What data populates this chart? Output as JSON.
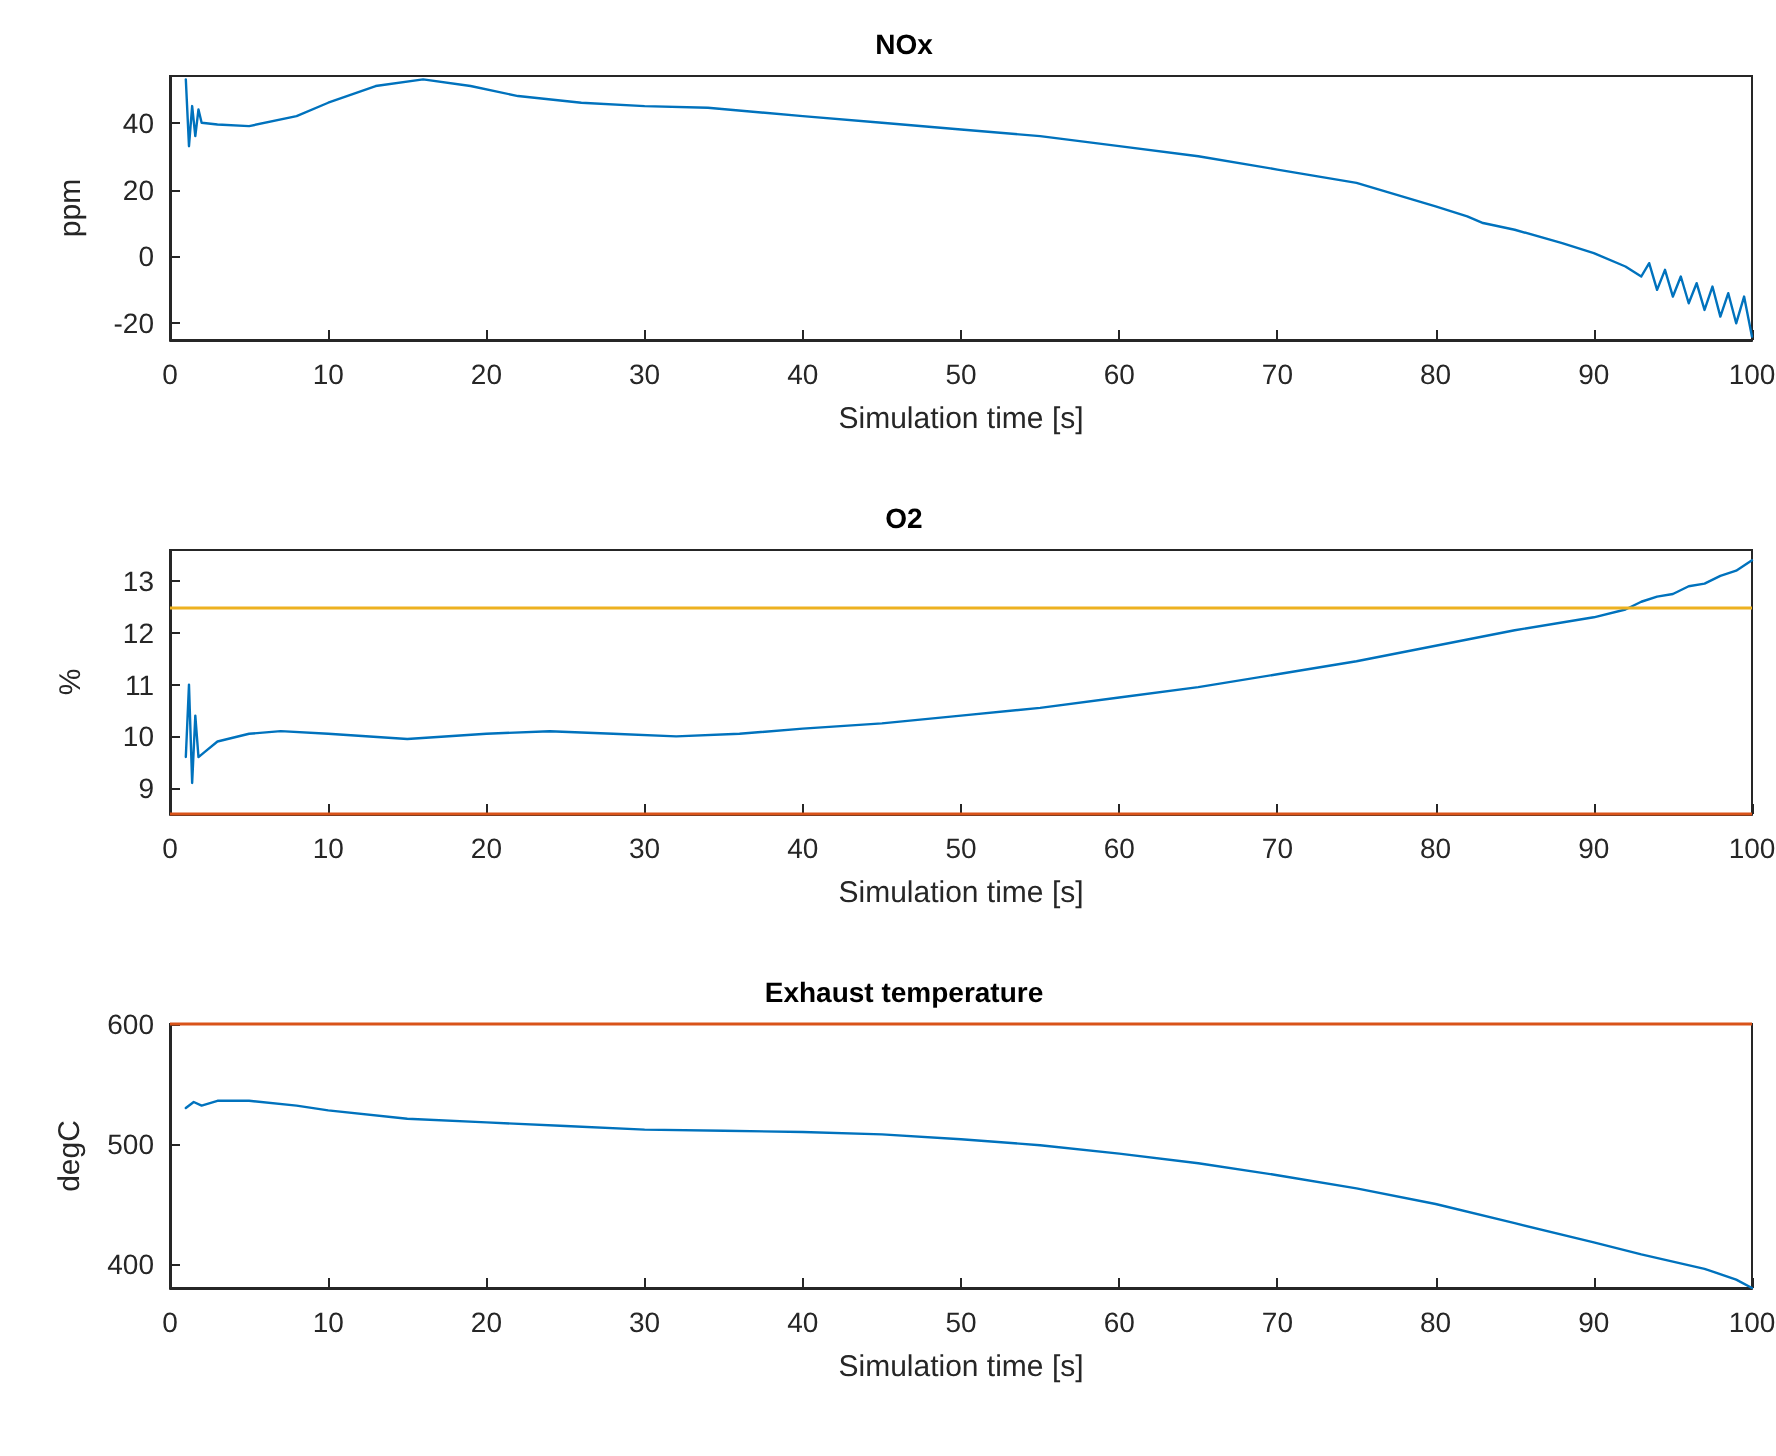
{
  "chart_data": [
    {
      "type": "line",
      "title": "NOx",
      "xlabel": "Simulation time [s]",
      "ylabel": "ppm",
      "xlim": [
        0,
        100
      ],
      "xticks": [
        0,
        10,
        20,
        30,
        40,
        50,
        60,
        70,
        80,
        90,
        100
      ],
      "ylim": [
        -25,
        54
      ],
      "yticks": [
        -20,
        0,
        20,
        40
      ],
      "marker": "none",
      "line_style": "solid",
      "series": [
        {
          "color": "#0072bd",
          "x": [
            1,
            1.2,
            1.4,
            1.6,
            1.8,
            2,
            3,
            5,
            8,
            10,
            13,
            16,
            19,
            22,
            26,
            30,
            34,
            40,
            45,
            50,
            55,
            60,
            65,
            70,
            75,
            80,
            82,
            83,
            85,
            88,
            90,
            92,
            93,
            93.5,
            94,
            94.5,
            95,
            95.5,
            96,
            96.5,
            97,
            97.5,
            98,
            98.5,
            99,
            99.5,
            100
          ],
          "values": [
            53,
            33,
            45,
            36,
            44,
            40,
            39.5,
            39,
            42,
            46,
            51,
            53,
            51,
            48,
            46,
            45,
            44.5,
            42,
            40,
            38,
            36,
            33,
            30,
            26,
            22,
            15,
            12,
            10,
            8,
            4,
            1,
            -3,
            -6,
            -2,
            -10,
            -4,
            -12,
            -6,
            -14,
            -8,
            -16,
            -9,
            -18,
            -11,
            -20,
            -12,
            -24
          ]
        }
      ]
    },
    {
      "type": "line",
      "title": "O2",
      "xlabel": "Simulation time [s]",
      "ylabel": "%",
      "xlim": [
        0,
        100
      ],
      "xticks": [
        0,
        10,
        20,
        30,
        40,
        50,
        60,
        70,
        80,
        90,
        100
      ],
      "ylim": [
        8.5,
        13.6
      ],
      "yticks": [
        9,
        10,
        11,
        12,
        13
      ],
      "marker": "none",
      "line_style": "solid",
      "series": [
        {
          "color": "#0072bd",
          "x": [
            1,
            1.2,
            1.4,
            1.6,
            1.8,
            2.2,
            3,
            5,
            7,
            10,
            15,
            20,
            24,
            28,
            32,
            36,
            40,
            45,
            50,
            55,
            60,
            65,
            70,
            75,
            80,
            85,
            90,
            92,
            93,
            94,
            95,
            96,
            97,
            98,
            99,
            100
          ],
          "values": [
            9.6,
            11,
            9.1,
            10.4,
            9.6,
            9.7,
            9.9,
            10.05,
            10.1,
            10.05,
            9.95,
            10.05,
            10.1,
            10.05,
            10,
            10.05,
            10.15,
            10.25,
            10.4,
            10.55,
            10.75,
            10.95,
            11.2,
            11.45,
            11.75,
            12.05,
            12.3,
            12.45,
            12.6,
            12.7,
            12.75,
            12.9,
            12.95,
            13.1,
            13.2,
            13.4
          ]
        }
      ],
      "ref_lines": [
        {
          "axis": "y",
          "value": 12.5,
          "color": "#edb120"
        },
        {
          "axis": "y",
          "value": 8.5,
          "color": "#d95319"
        }
      ]
    },
    {
      "type": "line",
      "title": "Exhaust temperature",
      "xlabel": "Simulation time [s]",
      "ylabel": "degC",
      "xlim": [
        0,
        100
      ],
      "xticks": [
        0,
        10,
        20,
        30,
        40,
        50,
        60,
        70,
        80,
        90,
        100
      ],
      "ylim": [
        380,
        600
      ],
      "yticks": [
        400,
        500,
        600
      ],
      "marker": "none",
      "line_style": "solid",
      "series": [
        {
          "color": "#0072bd",
          "x": [
            1,
            1.5,
            2,
            3,
            5,
            8,
            10,
            15,
            20,
            25,
            30,
            35,
            40,
            45,
            50,
            55,
            60,
            65,
            70,
            75,
            80,
            85,
            90,
            93,
            95,
            97,
            99,
            100
          ],
          "values": [
            530,
            535,
            532,
            536,
            536,
            532,
            528,
            521,
            518,
            515,
            512,
            511,
            510,
            508,
            504,
            499,
            492,
            484,
            474,
            463,
            450,
            434,
            418,
            408,
            402,
            396,
            387,
            380
          ]
        }
      ],
      "ref_lines": [
        {
          "axis": "y",
          "value": 600,
          "color": "#d95319"
        }
      ]
    }
  ]
}
